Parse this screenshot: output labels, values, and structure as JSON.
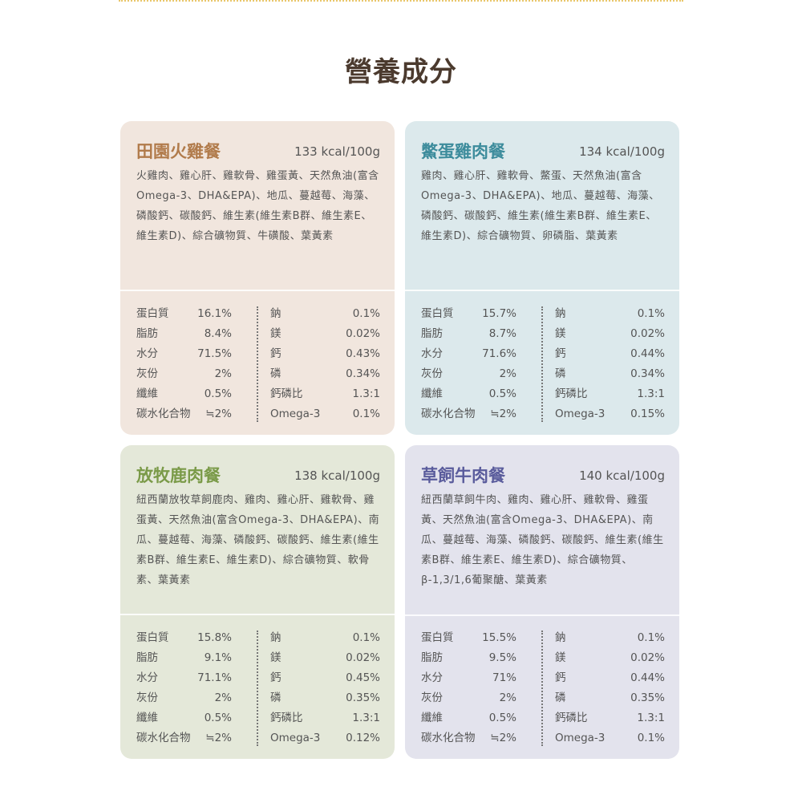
{
  "page_title": "營養成分",
  "colors": {
    "accent_dots": "#e9c66a"
  },
  "cards": [
    {
      "title": "田園火雞餐",
      "kcal": "133 kcal/100g",
      "bg": "#f1e6de",
      "title_color": "#b17b4b",
      "desc": "火雞肉、雞心肝、雞軟骨、雞蛋黃、天然魚油(富含Omega-3、DHA&EPA)、地瓜、蔓越莓、海藻、磷酸鈣、碳酸鈣、維生素(維生素B群、維生素E、維生素D)、綜合礦物質、牛磺酸、葉黃素",
      "rows": [
        {
          "l1": "蛋白質",
          "v1": "16.1%",
          "l2": "鈉",
          "v2": "0.1%"
        },
        {
          "l1": "脂肪",
          "v1": "8.4%",
          "l2": "鎂",
          "v2": "0.02%"
        },
        {
          "l1": "水分",
          "v1": "71.5%",
          "l2": "鈣",
          "v2": "0.43%"
        },
        {
          "l1": "灰份",
          "v1": "2%",
          "l2": "磷",
          "v2": "0.34%"
        },
        {
          "l1": "纖維",
          "v1": "0.5%",
          "l2": "鈣磷比",
          "v2": "1.3:1"
        },
        {
          "l1": "碳水化合物",
          "v1": "≒2%",
          "l2": "Omega-3",
          "v2": "0.1%"
        }
      ]
    },
    {
      "title": "鱉蛋雞肉餐",
      "kcal": "134 kcal/100g",
      "bg": "#dce9ec",
      "title_color": "#3d8c9c",
      "desc": "雞肉、雞心肝、雞軟骨、鱉蛋、天然魚油(富含Omega-3、DHA&EPA)、地瓜、蔓越莓、海藻、磷酸鈣、碳酸鈣、維生素(維生素B群、維生素E、維生素D)、綜合礦物質、卵磷脂、葉黃素",
      "rows": [
        {
          "l1": "蛋白質",
          "v1": "15.7%",
          "l2": "鈉",
          "v2": "0.1%"
        },
        {
          "l1": "脂肪",
          "v1": "8.7%",
          "l2": "鎂",
          "v2": "0.02%"
        },
        {
          "l1": "水分",
          "v1": "71.6%",
          "l2": "鈣",
          "v2": "0.44%"
        },
        {
          "l1": "灰份",
          "v1": "2%",
          "l2": "磷",
          "v2": "0.34%"
        },
        {
          "l1": "纖維",
          "v1": "0.5%",
          "l2": "鈣磷比",
          "v2": "1.3:1"
        },
        {
          "l1": "碳水化合物",
          "v1": "≒2%",
          "l2": "Omega-3",
          "v2": "0.15%"
        }
      ]
    },
    {
      "title": "放牧鹿肉餐",
      "kcal": "138 kcal/100g",
      "bg": "#e4e8d9",
      "title_color": "#7a9a48",
      "desc": "紐西蘭放牧草飼鹿肉、雞肉、雞心肝、雞軟骨、雞蛋黃、天然魚油(富含Omega-3、DHA&EPA)、南瓜、蔓越莓、海藻、磷酸鈣、碳酸鈣、維生素(維生素B群、維生素E、維生素D)、綜合礦物質、軟骨素、葉黃素",
      "rows": [
        {
          "l1": "蛋白質",
          "v1": "15.8%",
          "l2": "鈉",
          "v2": "0.1%"
        },
        {
          "l1": "脂肪",
          "v1": "9.1%",
          "l2": "鎂",
          "v2": "0.02%"
        },
        {
          "l1": "水分",
          "v1": "71.1%",
          "l2": "鈣",
          "v2": "0.45%"
        },
        {
          "l1": "灰份",
          "v1": "2%",
          "l2": "磷",
          "v2": "0.35%"
        },
        {
          "l1": "纖維",
          "v1": "0.5%",
          "l2": "鈣磷比",
          "v2": "1.3:1"
        },
        {
          "l1": "碳水化合物",
          "v1": "≒2%",
          "l2": "Omega-3",
          "v2": "0.12%"
        }
      ]
    },
    {
      "title": "草飼牛肉餐",
      "kcal": "140 kcal/100g",
      "bg": "#e3e3ed",
      "title_color": "#5a5c9c",
      "desc": "紐西蘭草飼牛肉、雞肉、雞心肝、雞軟骨、雞蛋黃、天然魚油(富含Omega-3、DHA&EPA)、南瓜、蔓越莓、海藻、磷酸鈣、碳酸鈣、維生素(維生素B群、維生素E、維生素D)、綜合礦物質、β-1,3/1,6葡聚醣、葉黃素",
      "rows": [
        {
          "l1": "蛋白質",
          "v1": "15.5%",
          "l2": "鈉",
          "v2": "0.1%"
        },
        {
          "l1": "脂肪",
          "v1": "9.5%",
          "l2": "鎂",
          "v2": "0.02%"
        },
        {
          "l1": "水分",
          "v1": "71%",
          "l2": "鈣",
          "v2": "0.44%"
        },
        {
          "l1": "灰份",
          "v1": "2%",
          "l2": "磷",
          "v2": "0.35%"
        },
        {
          "l1": "纖維",
          "v1": "0.5%",
          "l2": "鈣磷比",
          "v2": "1.3:1"
        },
        {
          "l1": "碳水化合物",
          "v1": "≒2%",
          "l2": "Omega-3",
          "v2": "0.1%"
        }
      ]
    }
  ]
}
